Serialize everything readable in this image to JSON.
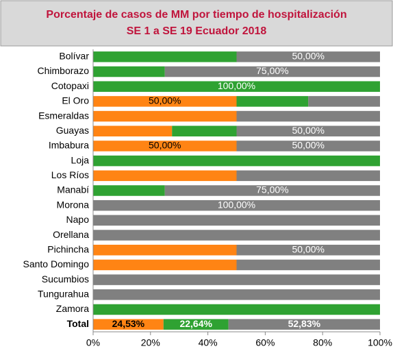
{
  "chart_data": {
    "type": "stacked-barh",
    "title": "Porcentaje de casos de MM por tiempo de hospitalización",
    "subtitle": "SE 1 a SE 19  Ecuador 2018",
    "categories": [
      "Bolívar",
      "Chimborazo",
      "Cotopaxi",
      "El Oro",
      "Esmeraldas",
      "Guayas",
      "Imbabura",
      "Loja",
      "Los Ríos",
      "Manabí",
      "Morona",
      "Napo",
      "Orellana",
      "Pichincha",
      "Santo Domingo",
      "Sucumbios",
      "Tungurahua",
      "Zamora",
      "Total"
    ],
    "series": [
      {
        "color": "#ff8414",
        "values": [
          0,
          0,
          0,
          50,
          50,
          27.5,
          50,
          0,
          50,
          0,
          0,
          0,
          0,
          50,
          50,
          0,
          0,
          0,
          24.53
        ],
        "value_labels": [
          null,
          null,
          null,
          "50,00%",
          null,
          null,
          "50,00%",
          null,
          null,
          null,
          null,
          null,
          null,
          null,
          null,
          null,
          null,
          null,
          "24,53%"
        ]
      },
      {
        "color": "#2fa232",
        "values": [
          50,
          25,
          100,
          25,
          0,
          22.5,
          0,
          100,
          0,
          25,
          0,
          0,
          0,
          0,
          0,
          0,
          0,
          100,
          22.64
        ],
        "value_labels": [
          null,
          null,
          "100,00%",
          null,
          null,
          null,
          null,
          null,
          null,
          null,
          null,
          null,
          null,
          null,
          null,
          null,
          null,
          null,
          "22,64%"
        ]
      },
      {
        "color": "#808080",
        "values": [
          50,
          75,
          0,
          25,
          50,
          50,
          50,
          0,
          50,
          75,
          100,
          100,
          100,
          50,
          50,
          100,
          100,
          0,
          52.83
        ],
        "value_labels": [
          "50,00%",
          "75,00%",
          null,
          null,
          null,
          "50,00%",
          "50,00%",
          null,
          null,
          "75,00%",
          "100,00%",
          null,
          null,
          "50,00%",
          null,
          null,
          null,
          null,
          "52,83%"
        ]
      }
    ],
    "xlim": [
      0,
      100
    ],
    "xticks": [
      {
        "value": 0,
        "label": "0%"
      },
      {
        "value": 20,
        "label": "20%"
      },
      {
        "value": 40,
        "label": "40%"
      },
      {
        "value": 60,
        "label": "60%"
      },
      {
        "value": 80,
        "label": "80%"
      },
      {
        "value": 100,
        "label": "100%"
      }
    ]
  }
}
